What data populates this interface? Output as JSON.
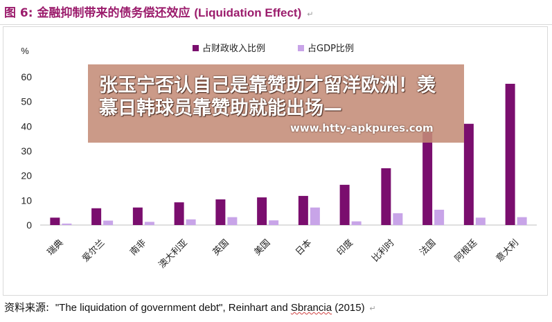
{
  "figure": {
    "label": "图 6:",
    "title_zh": "金融抑制带来的债务偿还效应",
    "title_en": "(Liquidation Effect)",
    "para_mark": "↵"
  },
  "overlay": {
    "headline": "张玉宁否认自己是靠赞助才留洋欧洲！羡慕日韩球员靠赞助就能出场—",
    "url": "www.htty-apkpures.com"
  },
  "source": {
    "label": "资料来源:",
    "text_pre": "\"The liquidation of government debt\", Reinhart and ",
    "text_underlined": "Sbrancia",
    "text_post": " (2015)"
  },
  "chart_data": {
    "type": "bar",
    "y_unit": "%",
    "categories": [
      "瑞典",
      "爱尔兰",
      "南非",
      "澳大利亚",
      "英国",
      "美国",
      "日本",
      "印度",
      "比利时",
      "法国",
      "阿根廷",
      "意大利"
    ],
    "series": [
      {
        "name": "占财政收入比例",
        "color": "#7a0e6e",
        "values": [
          3.0,
          6.8,
          7.1,
          9.2,
          10.4,
          11.2,
          11.8,
          16.3,
          23.0,
          37.5,
          41.0,
          57.2
        ]
      },
      {
        "name": "占GDP比例",
        "color": "#c8a4e8",
        "values": [
          0.6,
          1.8,
          1.3,
          2.3,
          3.2,
          1.9,
          7.1,
          1.5,
          4.8,
          6.2,
          3.0,
          3.2
        ]
      }
    ],
    "ylim": [
      0,
      60
    ],
    "yticks": [
      0,
      10,
      20,
      30,
      40,
      50,
      60
    ],
    "legend_position": "top-center",
    "grid": false
  }
}
